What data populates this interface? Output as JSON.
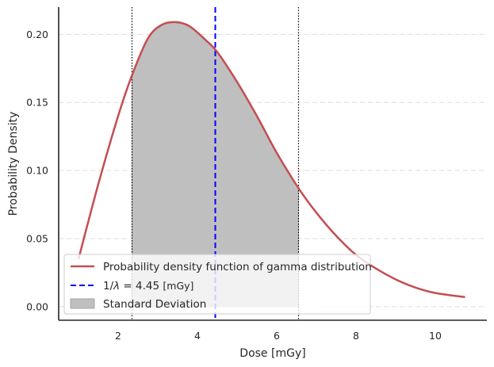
{
  "chart_data": {
    "type": "line",
    "title": "",
    "xlabel": "Dose [mGy]",
    "ylabel": "Probability Density",
    "xlim": [
      0.5,
      11.3
    ],
    "ylim": [
      -0.01,
      0.22
    ],
    "x_ticks": [
      2,
      4,
      6,
      8,
      10
    ],
    "y_ticks": [
      0.0,
      0.05,
      0.1,
      0.15,
      0.2
    ],
    "x_tick_labels": [
      "2",
      "4",
      "6",
      "8",
      "10"
    ],
    "y_tick_labels": [
      "0.00",
      "0.05",
      "0.10",
      "0.15",
      "0.20"
    ],
    "grid": "horizontal dashed",
    "legend_placement": "lower-left",
    "series": [
      {
        "name": "Probability density function of gamma distribution",
        "kind": "line",
        "color": "#c44e52",
        "x": [
          1.0,
          1.5,
          2.0,
          2.35,
          2.75,
          3.1,
          3.45,
          3.8,
          4.2,
          4.5,
          5.0,
          5.5,
          6.0,
          6.55,
          7.0,
          7.5,
          8.0,
          8.5,
          9.0,
          9.5,
          10.0,
          10.75
        ],
        "y": [
          0.035,
          0.09,
          0.14,
          0.17,
          0.197,
          0.207,
          0.209,
          0.206,
          0.196,
          0.187,
          0.165,
          0.14,
          0.113,
          0.087,
          0.069,
          0.052,
          0.038,
          0.028,
          0.02,
          0.014,
          0.01,
          0.007
        ]
      },
      {
        "name": "1/λ = 4.45 [mGy]",
        "kind": "vline",
        "color": "#0000ff",
        "x": 4.45
      },
      {
        "name": "Standard Deviation",
        "kind": "fill",
        "color": "#bfbfbf",
        "x_range": [
          2.35,
          6.55
        ]
      }
    ],
    "dotted_vlines": [
      2.35,
      6.55
    ],
    "legend": {
      "line_label": "Probability density function of gamma distribution",
      "mean_prefix": "1/",
      "mean_lambda": "λ",
      "mean_eq": " = 4.45 ",
      "mean_unit": "[mGy]",
      "fill_label": "Standard Deviation"
    }
  }
}
